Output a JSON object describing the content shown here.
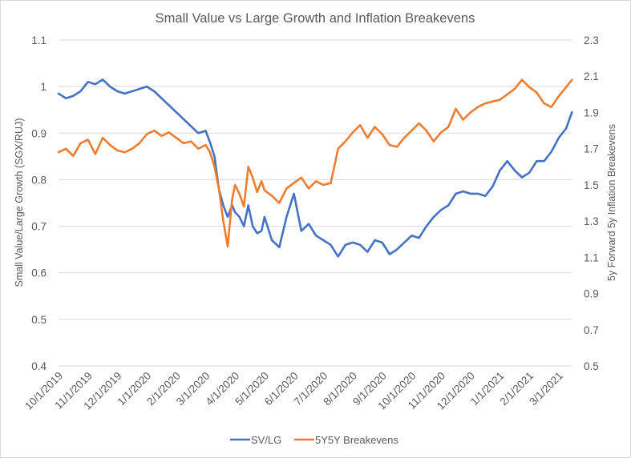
{
  "chart_data": {
    "type": "line",
    "title": "Small Value vs Large Growth and Inflation Breakevens",
    "xlabel": "",
    "ylabel": "Small Value/Large Growth (SGX/RUJ)",
    "y2label": "5y Forward 5y Inflation Breakevens",
    "ylim": [
      0.4,
      1.1
    ],
    "y2lim": [
      0.5,
      2.3
    ],
    "yticks": [
      "0.4",
      "0.5",
      "0.6",
      "0.7",
      "0.8",
      "0.9",
      "1",
      "1.1"
    ],
    "y2ticks": [
      "0.5",
      "0.7",
      "0.9",
      "1.1",
      "1.3",
      "1.5",
      "1.7",
      "1.9",
      "2.1",
      "2.3"
    ],
    "xticks": [
      "10/1/2019",
      "11/1/2019",
      "12/1/2019",
      "1/1/2020",
      "2/1/2020",
      "3/1/2020",
      "4/1/2020",
      "5/1/2020",
      "6/1/2020",
      "7/1/2020",
      "8/1/2020",
      "9/1/2020",
      "10/1/2020",
      "11/1/2020",
      "12/1/2020",
      "1/1/2021",
      "2/1/2021",
      "3/1/2021"
    ],
    "x_months": [
      0,
      0.25,
      0.5,
      0.75,
      1,
      1.25,
      1.5,
      1.75,
      2,
      2.25,
      2.5,
      2.75,
      3,
      3.25,
      3.5,
      3.75,
      4,
      4.25,
      4.5,
      4.75,
      5,
      5.15,
      5.3,
      5.45,
      5.6,
      5.75,
      5.9,
      6,
      6.15,
      6.3,
      6.45,
      6.6,
      6.75,
      6.9,
      7,
      7.25,
      7.5,
      7.75,
      8,
      8.25,
      8.5,
      8.75,
      9,
      9.25,
      9.5,
      9.75,
      10,
      10.25,
      10.5,
      10.75,
      11,
      11.25,
      11.5,
      11.75,
      12,
      12.25,
      12.5,
      12.75,
      13,
      13.25,
      13.5,
      13.75,
      14,
      14.25,
      14.5,
      14.75,
      15,
      15.25,
      15.5,
      15.75,
      16,
      16.25,
      16.5,
      16.75,
      17,
      17.25,
      17.45
    ],
    "legend_position": "bottom",
    "grid": true,
    "series": [
      {
        "name": "SV/LG",
        "axis": "left",
        "color": "#4472c4",
        "values": [
          0.985,
          0.975,
          0.98,
          0.99,
          1.01,
          1.005,
          1.015,
          1.0,
          0.99,
          0.985,
          0.99,
          0.995,
          1.0,
          0.99,
          0.975,
          0.96,
          0.945,
          0.93,
          0.915,
          0.9,
          0.905,
          0.88,
          0.85,
          0.78,
          0.745,
          0.72,
          0.745,
          0.73,
          0.72,
          0.7,
          0.745,
          0.7,
          0.685,
          0.69,
          0.72,
          0.67,
          0.655,
          0.72,
          0.77,
          0.69,
          0.705,
          0.68,
          0.67,
          0.66,
          0.635,
          0.66,
          0.665,
          0.66,
          0.645,
          0.67,
          0.665,
          0.64,
          0.65,
          0.665,
          0.68,
          0.675,
          0.7,
          0.72,
          0.735,
          0.745,
          0.77,
          0.775,
          0.77,
          0.77,
          0.765,
          0.785,
          0.82,
          0.84,
          0.82,
          0.805,
          0.815,
          0.84,
          0.84,
          0.86,
          0.89,
          0.91,
          0.945
        ]
      },
      {
        "name": "5Y5Y Breakevens",
        "axis": "right",
        "color": "#ed7d31",
        "values": [
          1.68,
          1.7,
          1.66,
          1.73,
          1.75,
          1.67,
          1.76,
          1.72,
          1.69,
          1.68,
          1.7,
          1.73,
          1.78,
          1.8,
          1.77,
          1.79,
          1.76,
          1.73,
          1.74,
          1.7,
          1.72,
          1.68,
          1.6,
          1.48,
          1.3,
          1.16,
          1.42,
          1.5,
          1.45,
          1.38,
          1.6,
          1.54,
          1.46,
          1.52,
          1.47,
          1.44,
          1.4,
          1.48,
          1.51,
          1.54,
          1.48,
          1.52,
          1.5,
          1.51,
          1.7,
          1.74,
          1.79,
          1.83,
          1.76,
          1.82,
          1.78,
          1.72,
          1.71,
          1.76,
          1.8,
          1.84,
          1.8,
          1.74,
          1.79,
          1.82,
          1.92,
          1.86,
          1.9,
          1.93,
          1.95,
          1.96,
          1.97,
          2.0,
          2.03,
          2.08,
          2.04,
          2.01,
          1.95,
          1.93,
          1.99,
          2.04,
          2.08
        ]
      }
    ]
  }
}
